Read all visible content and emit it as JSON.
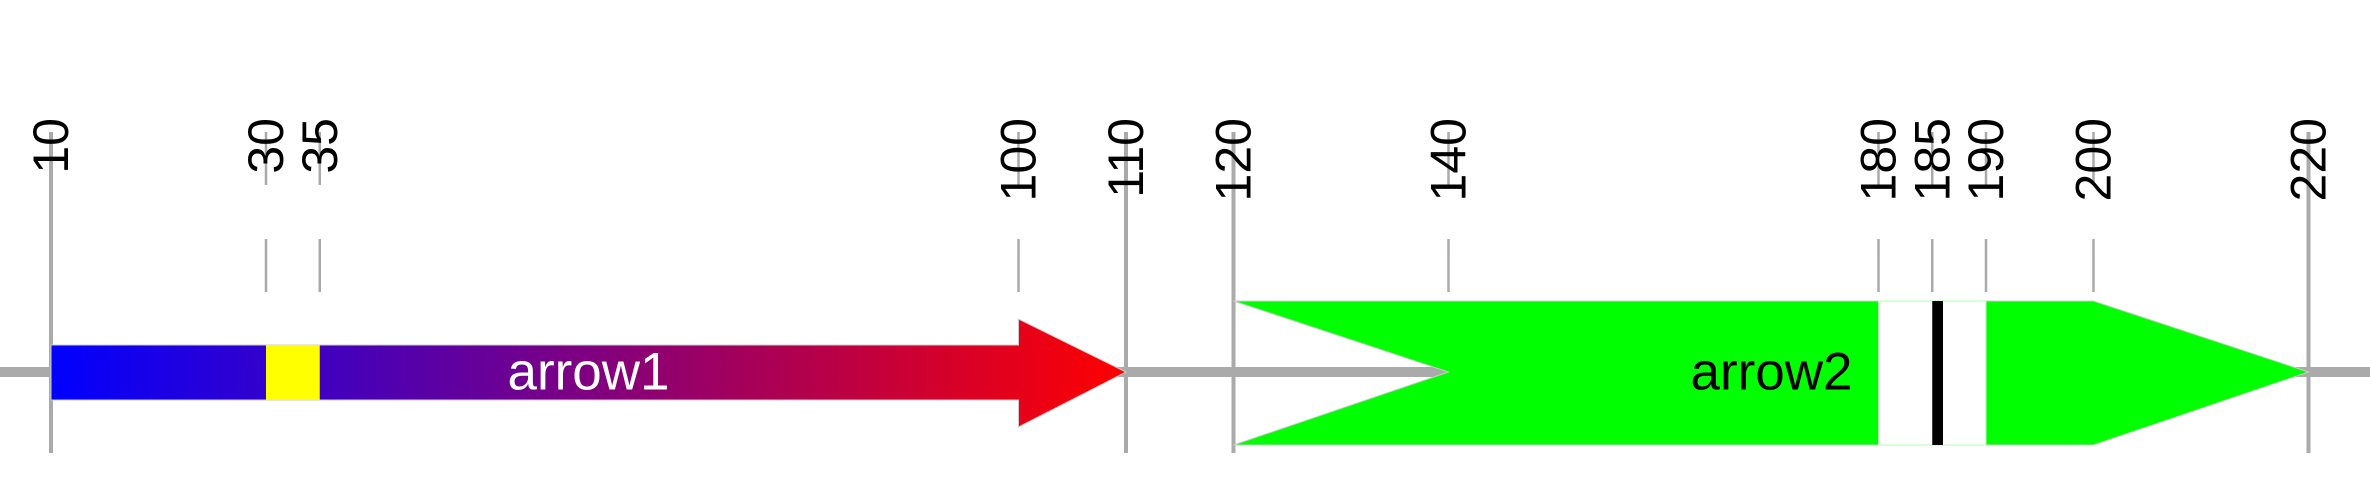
{
  "sequence_range": [
    5,
    225
  ],
  "colors": {
    "baseline": "#aaaaaa",
    "tick": "#aaaaaa",
    "label": "#000000"
  },
  "ticks": [
    {
      "value": 10,
      "label": "10",
      "style": "solid"
    },
    {
      "value": 30,
      "label": "30",
      "style": "dashed"
    },
    {
      "value": 35,
      "label": "35",
      "style": "dashed"
    },
    {
      "value": 100,
      "label": "100",
      "style": "dashed"
    },
    {
      "value": 110,
      "label": "110",
      "style": "solid"
    },
    {
      "value": 120,
      "label": "120",
      "style": "solid"
    },
    {
      "value": 140,
      "label": "140",
      "style": "dashed"
    },
    {
      "value": 180,
      "label": "180",
      "style": "dashed"
    },
    {
      "value": 185,
      "label": "185",
      "style": "dashed"
    },
    {
      "value": 190,
      "label": "190",
      "style": "dashed"
    },
    {
      "value": 200,
      "label": "200",
      "style": "dashed"
    },
    {
      "value": 220,
      "label": "220",
      "style": "solid"
    }
  ],
  "features": [
    {
      "label": "arrow1",
      "start": 10,
      "end": 110,
      "head_start": 100,
      "shape": "arrow",
      "fill_gradient": [
        "#0000ff",
        "#ff0000"
      ],
      "label_color": "#ffffff",
      "label_align": "center",
      "bands": [
        {
          "start": 30,
          "end": 35,
          "color": "#ffff00"
        }
      ]
    },
    {
      "label": "arrow2",
      "start": 120,
      "end": 220,
      "head_start": 200,
      "notch_end": 140,
      "shape": "notched-arrow",
      "fill": "#00ff00",
      "label_color": "#000000",
      "label_align": "right",
      "bands": [
        {
          "start": 180,
          "end": 190,
          "color": "#ffffff"
        },
        {
          "start": 185,
          "end": 186,
          "color": "#000000"
        }
      ]
    }
  ]
}
